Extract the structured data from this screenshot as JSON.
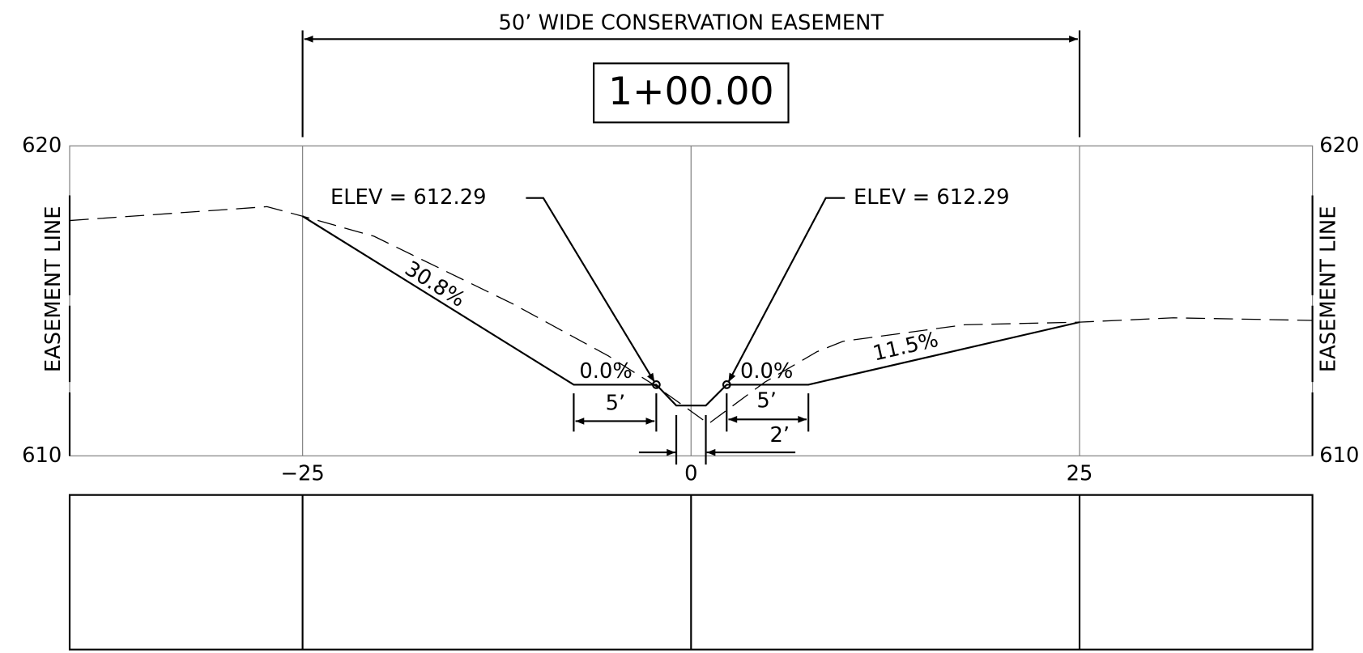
{
  "title": "50’ WIDE CONSERVATION EASEMENT",
  "station": "1+00.00",
  "y_axis": {
    "left": [
      "620",
      "610"
    ],
    "right": [
      "620",
      "610"
    ]
  },
  "x_axis": [
    "−25",
    "0",
    "25"
  ],
  "easement_lines": [
    "EASEMENT LINE",
    "EASEMENT LINE"
  ],
  "elevations": [
    "ELEV  =  612.29",
    "ELEV  =  612.29"
  ],
  "slopes": [
    "30.8%",
    "0.0%",
    "0.0%",
    "11.5%"
  ],
  "dimensions": [
    "5’",
    "5’",
    "2’"
  ]
}
